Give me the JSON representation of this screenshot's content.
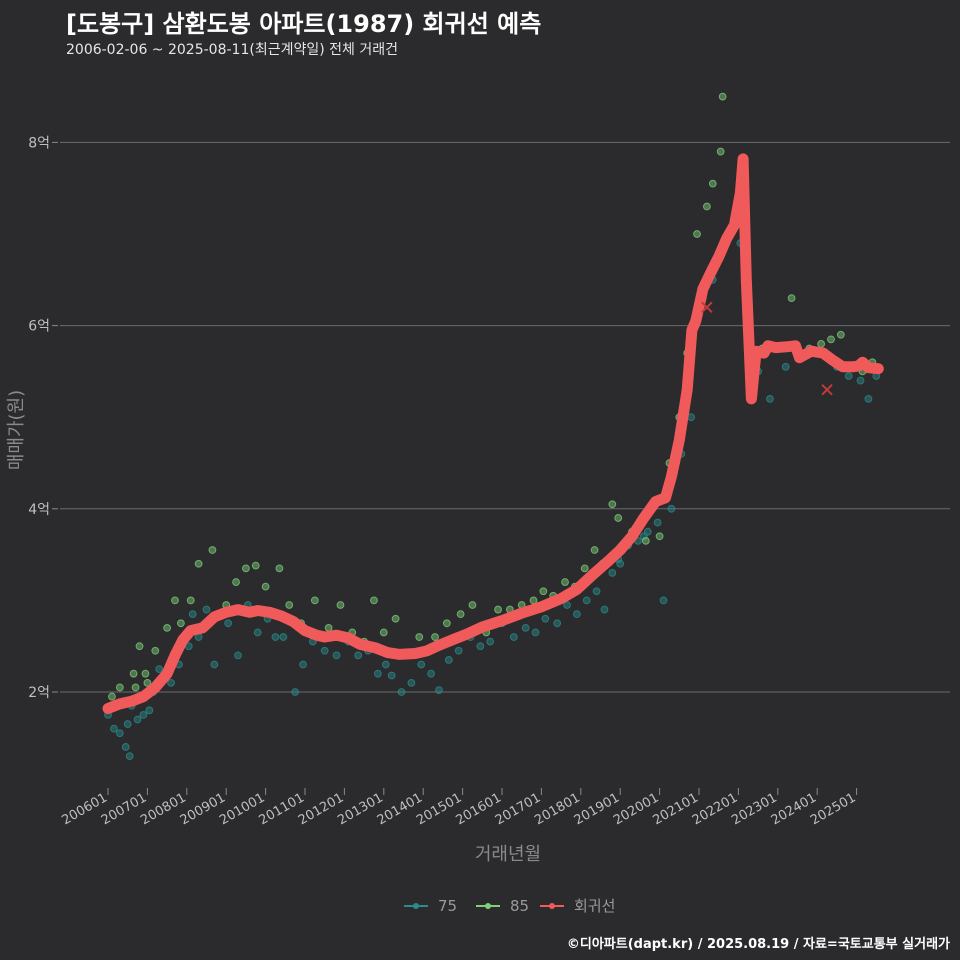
{
  "header": {
    "title": "[도봉구] 삼환도봉 아파트(1987) 회귀선 예측",
    "subtitle": "2006-02-06 ~ 2025-08-11(최근계약일) 전체 거래건"
  },
  "footer": {
    "caption": "©디아파트(dapt.kr) / 2025.08.19 / 자료=국토교통부 실거래가"
  },
  "colors": {
    "background": "#2b2a2c",
    "grid": "#6b6b6b",
    "series_75": "#2a8c8c",
    "series_85": "#7ed07a",
    "regression": "#f05a5a"
  },
  "chart_data": {
    "type": "scatter",
    "title": "[도봉구] 삼환도봉 아파트(1987) 회귀선 예측",
    "xlabel": "거래년월",
    "ylabel": "매매가(원)",
    "x_unit": "year (decimal)",
    "y_unit": "억원",
    "xlim": [
      2005.7,
      2026.2
    ],
    "ylim": [
      1.0,
      8.9
    ],
    "x_ticks": [
      {
        "v": 2006.0,
        "label": "200601"
      },
      {
        "v": 2007.0,
        "label": "200701"
      },
      {
        "v": 2008.0,
        "label": "200801"
      },
      {
        "v": 2009.0,
        "label": "200901"
      },
      {
        "v": 2010.0,
        "label": "201001"
      },
      {
        "v": 2011.0,
        "label": "201101"
      },
      {
        "v": 2012.0,
        "label": "201201"
      },
      {
        "v": 2013.0,
        "label": "201301"
      },
      {
        "v": 2014.0,
        "label": "201401"
      },
      {
        "v": 2015.0,
        "label": "201501"
      },
      {
        "v": 2016.0,
        "label": "201601"
      },
      {
        "v": 2017.0,
        "label": "201701"
      },
      {
        "v": 2018.0,
        "label": "201801"
      },
      {
        "v": 2019.0,
        "label": "201901"
      },
      {
        "v": 2020.0,
        "label": "202001"
      },
      {
        "v": 2021.0,
        "label": "202101"
      },
      {
        "v": 2022.0,
        "label": "202201"
      },
      {
        "v": 2023.0,
        "label": "202301"
      },
      {
        "v": 2024.0,
        "label": "202401"
      },
      {
        "v": 2025.0,
        "label": "202501"
      }
    ],
    "y_ticks": [
      {
        "v": 2,
        "label": "2억"
      },
      {
        "v": 4,
        "label": "4억"
      },
      {
        "v": 6,
        "label": "6억"
      },
      {
        "v": 8,
        "label": "8억"
      }
    ],
    "grid": true,
    "legend": {
      "position": "bottom",
      "items": [
        {
          "key": "series_75",
          "label": "75"
        },
        {
          "key": "series_85",
          "label": "85"
        },
        {
          "key": "regression",
          "label": "회귀선"
        }
      ]
    },
    "regression": [
      [
        2006.0,
        1.82
      ],
      [
        2006.3,
        1.87
      ],
      [
        2006.6,
        1.9
      ],
      [
        2006.9,
        1.95
      ],
      [
        2007.2,
        2.05
      ],
      [
        2007.5,
        2.2
      ],
      [
        2007.7,
        2.4
      ],
      [
        2007.9,
        2.57
      ],
      [
        2008.1,
        2.67
      ],
      [
        2008.4,
        2.7
      ],
      [
        2008.7,
        2.82
      ],
      [
        2009.0,
        2.87
      ],
      [
        2009.3,
        2.9
      ],
      [
        2009.6,
        2.87
      ],
      [
        2009.8,
        2.89
      ],
      [
        2010.1,
        2.87
      ],
      [
        2010.4,
        2.83
      ],
      [
        2010.7,
        2.77
      ],
      [
        2011.0,
        2.67
      ],
      [
        2011.3,
        2.62
      ],
      [
        2011.5,
        2.6
      ],
      [
        2011.8,
        2.62
      ],
      [
        2012.1,
        2.59
      ],
      [
        2012.4,
        2.52
      ],
      [
        2012.8,
        2.48
      ],
      [
        2013.1,
        2.43
      ],
      [
        2013.4,
        2.41
      ],
      [
        2013.8,
        2.42
      ],
      [
        2014.1,
        2.45
      ],
      [
        2014.4,
        2.51
      ],
      [
        2014.8,
        2.58
      ],
      [
        2015.1,
        2.63
      ],
      [
        2015.5,
        2.71
      ],
      [
        2016.0,
        2.78
      ],
      [
        2016.5,
        2.86
      ],
      [
        2017.0,
        2.93
      ],
      [
        2017.5,
        3.02
      ],
      [
        2017.9,
        3.12
      ],
      [
        2018.3,
        3.28
      ],
      [
        2018.7,
        3.43
      ],
      [
        2019.0,
        3.55
      ],
      [
        2019.3,
        3.7
      ],
      [
        2019.6,
        3.9
      ],
      [
        2019.9,
        4.08
      ],
      [
        2020.15,
        4.12
      ],
      [
        2020.3,
        4.35
      ],
      [
        2020.5,
        4.75
      ],
      [
        2020.7,
        5.3
      ],
      [
        2020.82,
        5.95
      ],
      [
        2020.92,
        6.05
      ],
      [
        2021.1,
        6.4
      ],
      [
        2021.3,
        6.58
      ],
      [
        2021.5,
        6.75
      ],
      [
        2021.7,
        6.95
      ],
      [
        2021.9,
        7.1
      ],
      [
        2022.05,
        7.45
      ],
      [
        2022.12,
        7.82
      ],
      [
        2022.2,
        6.5
      ],
      [
        2022.33,
        5.2
      ],
      [
        2022.45,
        5.72
      ],
      [
        2022.65,
        5.7
      ],
      [
        2022.75,
        5.78
      ],
      [
        2022.95,
        5.76
      ],
      [
        2023.25,
        5.77
      ],
      [
        2023.45,
        5.78
      ],
      [
        2023.55,
        5.65
      ],
      [
        2023.85,
        5.72
      ],
      [
        2024.15,
        5.7
      ],
      [
        2024.4,
        5.62
      ],
      [
        2024.65,
        5.55
      ],
      [
        2024.9,
        5.55
      ],
      [
        2025.05,
        5.56
      ],
      [
        2025.15,
        5.6
      ],
      [
        2025.3,
        5.54
      ],
      [
        2025.55,
        5.53
      ]
    ],
    "outlier_markers": [
      [
        2021.2,
        6.2
      ],
      [
        2024.25,
        5.3
      ]
    ],
    "scatter_series": [
      {
        "name": "75",
        "color_key": "series_75",
        "points": [
          [
            2006.0,
            1.75
          ],
          [
            2006.15,
            1.6
          ],
          [
            2006.3,
            1.55
          ],
          [
            2006.45,
            1.4
          ],
          [
            2006.55,
            1.3
          ],
          [
            2006.6,
            1.85
          ],
          [
            2006.75,
            1.7
          ],
          [
            2006.85,
            1.95
          ],
          [
            2007.05,
            1.8
          ],
          [
            2007.15,
            2.0
          ],
          [
            2007.3,
            2.25
          ],
          [
            2007.6,
            2.1
          ],
          [
            2007.8,
            2.3
          ],
          [
            2008.05,
            2.5
          ],
          [
            2008.3,
            2.6
          ],
          [
            2008.5,
            2.9
          ],
          [
            2008.7,
            2.3
          ],
          [
            2009.05,
            2.75
          ],
          [
            2009.3,
            2.4
          ],
          [
            2009.55,
            2.95
          ],
          [
            2009.8,
            2.65
          ],
          [
            2010.05,
            2.8
          ],
          [
            2010.25,
            2.6
          ],
          [
            2010.45,
            2.6
          ],
          [
            2010.75,
            2.0
          ],
          [
            2010.95,
            2.3
          ],
          [
            2011.2,
            2.55
          ],
          [
            2011.5,
            2.45
          ],
          [
            2011.8,
            2.4
          ],
          [
            2012.1,
            2.55
          ],
          [
            2012.35,
            2.4
          ],
          [
            2012.6,
            2.45
          ],
          [
            2012.85,
            2.2
          ],
          [
            2013.05,
            2.3
          ],
          [
            2013.2,
            2.18
          ],
          [
            2013.45,
            2.0
          ],
          [
            2013.7,
            2.1
          ],
          [
            2013.95,
            2.3
          ],
          [
            2014.2,
            2.2
          ],
          [
            2014.4,
            2.02
          ],
          [
            2014.65,
            2.35
          ],
          [
            2014.9,
            2.45
          ],
          [
            2015.2,
            2.6
          ],
          [
            2015.45,
            2.5
          ],
          [
            2015.7,
            2.55
          ],
          [
            2016.0,
            2.75
          ],
          [
            2016.3,
            2.6
          ],
          [
            2016.6,
            2.7
          ],
          [
            2016.85,
            2.65
          ],
          [
            2017.1,
            2.8
          ],
          [
            2017.4,
            2.75
          ],
          [
            2017.65,
            2.95
          ],
          [
            2017.9,
            2.85
          ],
          [
            2018.15,
            3.0
          ],
          [
            2018.4,
            3.1
          ],
          [
            2018.6,
            2.9
          ],
          [
            2018.8,
            3.3
          ],
          [
            2019.0,
            3.4
          ],
          [
            2019.2,
            3.6
          ],
          [
            2019.45,
            3.65
          ],
          [
            2019.7,
            3.75
          ],
          [
            2019.95,
            3.85
          ],
          [
            2020.1,
            3.0
          ],
          [
            2020.3,
            4.0
          ],
          [
            2020.55,
            4.6
          ],
          [
            2020.8,
            5.0
          ],
          [
            2021.1,
            6.3
          ],
          [
            2021.35,
            6.5
          ],
          [
            2022.05,
            6.9
          ],
          [
            2022.5,
            5.5
          ],
          [
            2022.8,
            5.2
          ],
          [
            2023.2,
            5.55
          ],
          [
            2023.6,
            5.65
          ],
          [
            2024.0,
            5.7
          ],
          [
            2024.5,
            5.55
          ],
          [
            2024.8,
            5.45
          ],
          [
            2025.1,
            5.4
          ],
          [
            2025.3,
            5.2
          ],
          [
            2025.5,
            5.45
          ],
          [
            2006.5,
            1.65
          ],
          [
            2006.9,
            1.75
          ],
          [
            2007.45,
            2.15
          ],
          [
            2008.15,
            2.85
          ],
          [
            2018.95,
            3.45
          ],
          [
            2019.6,
            3.7
          ]
        ]
      },
      {
        "name": "85",
        "color_key": "series_85",
        "points": [
          [
            2006.1,
            1.95
          ],
          [
            2006.3,
            2.05
          ],
          [
            2006.5,
            1.9
          ],
          [
            2006.65,
            2.2
          ],
          [
            2006.8,
            2.5
          ],
          [
            2006.95,
            2.2
          ],
          [
            2007.2,
            2.45
          ],
          [
            2007.5,
            2.7
          ],
          [
            2007.7,
            3.0
          ],
          [
            2007.85,
            2.75
          ],
          [
            2008.1,
            3.0
          ],
          [
            2008.3,
            3.4
          ],
          [
            2008.65,
            3.55
          ],
          [
            2009.0,
            2.95
          ],
          [
            2009.25,
            3.2
          ],
          [
            2009.5,
            3.35
          ],
          [
            2009.75,
            3.38
          ],
          [
            2010.0,
            3.15
          ],
          [
            2010.35,
            3.35
          ],
          [
            2010.6,
            2.95
          ],
          [
            2010.9,
            2.75
          ],
          [
            2011.25,
            3.0
          ],
          [
            2011.6,
            2.7
          ],
          [
            2011.9,
            2.95
          ],
          [
            2012.2,
            2.65
          ],
          [
            2012.5,
            2.55
          ],
          [
            2012.75,
            3.0
          ],
          [
            2013.0,
            2.65
          ],
          [
            2013.3,
            2.8
          ],
          [
            2013.6,
            2.4
          ],
          [
            2013.9,
            2.6
          ],
          [
            2014.3,
            2.6
          ],
          [
            2014.6,
            2.75
          ],
          [
            2014.95,
            2.85
          ],
          [
            2015.25,
            2.95
          ],
          [
            2015.6,
            2.65
          ],
          [
            2015.9,
            2.9
          ],
          [
            2016.2,
            2.9
          ],
          [
            2016.5,
            2.95
          ],
          [
            2016.8,
            3.0
          ],
          [
            2017.05,
            3.1
          ],
          [
            2017.3,
            3.05
          ],
          [
            2017.6,
            3.2
          ],
          [
            2017.85,
            3.15
          ],
          [
            2018.1,
            3.35
          ],
          [
            2018.35,
            3.55
          ],
          [
            2018.55,
            3.4
          ],
          [
            2018.8,
            4.05
          ],
          [
            2018.95,
            3.9
          ],
          [
            2019.3,
            3.75
          ],
          [
            2019.65,
            3.65
          ],
          [
            2020.0,
            3.7
          ],
          [
            2020.25,
            4.5
          ],
          [
            2020.5,
            5.0
          ],
          [
            2020.7,
            5.7
          ],
          [
            2020.95,
            7.0
          ],
          [
            2021.2,
            7.3
          ],
          [
            2021.35,
            7.55
          ],
          [
            2021.55,
            7.9
          ],
          [
            2021.6,
            8.5
          ],
          [
            2021.85,
            7.05
          ],
          [
            2022.6,
            5.75
          ],
          [
            2023.0,
            5.75
          ],
          [
            2023.35,
            6.3
          ],
          [
            2023.8,
            5.75
          ],
          [
            2024.1,
            5.8
          ],
          [
            2024.35,
            5.85
          ],
          [
            2024.6,
            5.9
          ],
          [
            2024.85,
            5.55
          ],
          [
            2025.15,
            5.5
          ],
          [
            2025.4,
            5.6
          ],
          [
            2006.7,
            2.05
          ],
          [
            2007.0,
            2.1
          ]
        ]
      }
    ]
  }
}
